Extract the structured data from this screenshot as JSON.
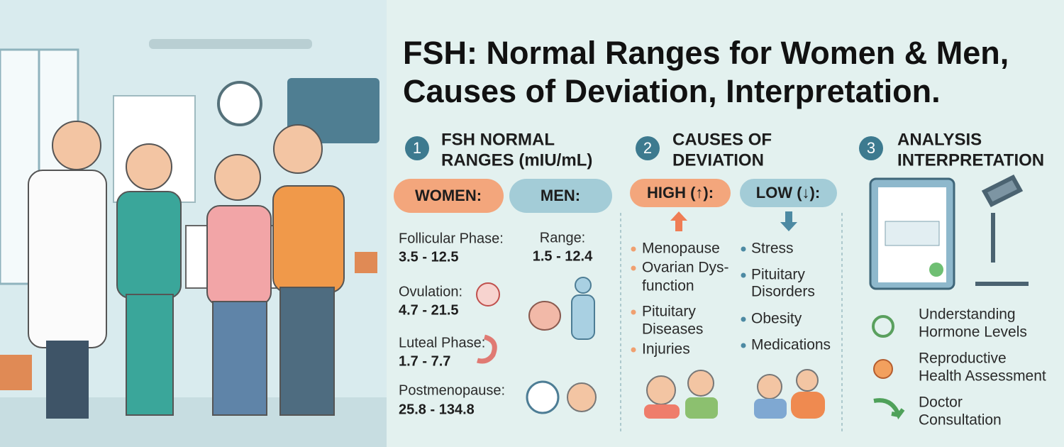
{
  "title": [
    "FSH: Normal Ranges for Women & Men,",
    "Causes of Deviation, Interpretation."
  ],
  "sections": [
    {
      "number": "1",
      "heading": [
        "FSH NORMAL",
        "RANGES (mIU/mL)"
      ],
      "women": {
        "label": "WOMEN:",
        "items": [
          {
            "label": "Follicular Phase:",
            "value": "3.5 - 12.5"
          },
          {
            "label": "Ovulation:",
            "value": "4.7 - 21.5"
          },
          {
            "label": "Luteal Phase:",
            "value": "1.7 - 7.7"
          },
          {
            "label": "Postmenopause:",
            "value": "25.8 - 134.8"
          }
        ]
      },
      "men": {
        "label": "MEN:",
        "items": [
          {
            "label": "Range:",
            "value": "1.5 - 12.4"
          }
        ]
      }
    },
    {
      "number": "2",
      "heading": [
        "CAUSES OF",
        "DEVIATION"
      ],
      "high": {
        "label": "HIGH (↑):",
        "items": [
          [
            "Menopause"
          ],
          [
            "Ovarian Dys-",
            "function"
          ],
          [
            "Pituitary",
            "Diseases"
          ],
          [
            "Injuries"
          ]
        ]
      },
      "low": {
        "label": "LOW (↓):",
        "items": [
          [
            "Stress"
          ],
          [
            "Pituitary",
            "Disorders"
          ],
          [
            "Obesity"
          ],
          [
            "Medications"
          ]
        ]
      }
    },
    {
      "number": "3",
      "heading": [
        "ANALYSIS",
        "INTERPRETATION"
      ],
      "items": [
        [
          "Understanding",
          "Hormone Levels"
        ],
        [
          "Reproductive",
          "Health Assessment"
        ],
        [
          "Doctor",
          "Consultation"
        ]
      ]
    }
  ]
}
